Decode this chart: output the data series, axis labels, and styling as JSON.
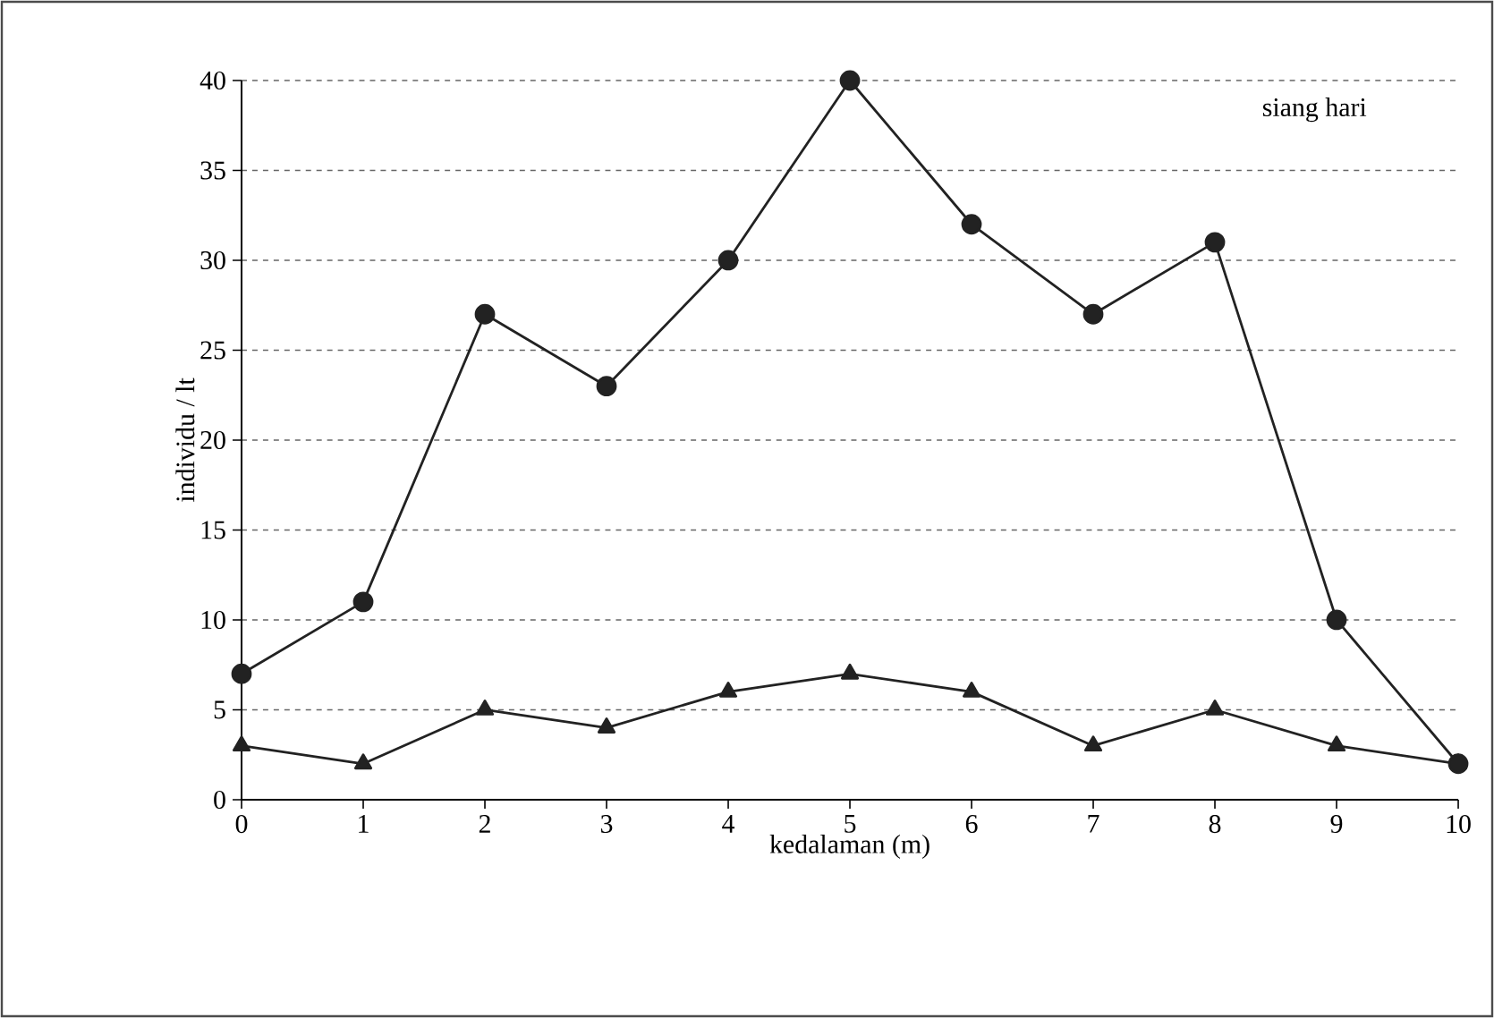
{
  "chart_data": {
    "type": "line",
    "xlabel": "kedalaman (m)",
    "ylabel": "individu / lt",
    "x": [
      0,
      1,
      2,
      3,
      4,
      5,
      6,
      7,
      8,
      9,
      10
    ],
    "series": [
      {
        "color": "#222222",
        "marker": "circle",
        "values": [
          7,
          11,
          27,
          23,
          30,
          40,
          32,
          27,
          31,
          10,
          2
        ]
      },
      {
        "color": "#222222",
        "marker": "triangle",
        "values": [
          3,
          2,
          5,
          4,
          6,
          7,
          6,
          3,
          5,
          3,
          2
        ]
      }
    ],
    "xlim": [
      0,
      10
    ],
    "xticks": [
      0,
      1,
      2,
      3,
      4,
      5,
      6,
      7,
      8,
      9,
      10
    ],
    "ylim": [
      0,
      40
    ],
    "yticks": [
      0,
      5,
      10,
      15,
      20,
      25,
      30,
      35,
      40
    ],
    "grid": "y",
    "line_style": "solid",
    "annotations": [
      "siang hari"
    ]
  }
}
